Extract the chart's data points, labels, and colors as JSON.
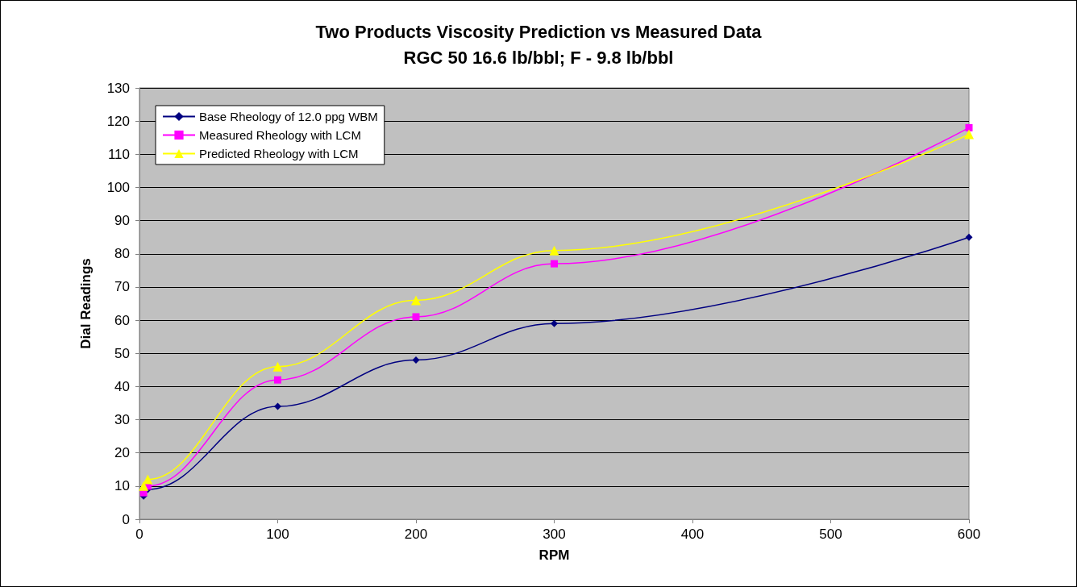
{
  "chart_data": {
    "type": "line",
    "title": "Two Products Viscosity Prediction vs Measured Data",
    "subtitle": "RGC 50 16.6 lb/bbl; F - 9.8 lb/bbl",
    "xlabel": "RPM",
    "ylabel": "Dial Readings",
    "x": [
      3,
      6,
      100,
      200,
      300,
      600
    ],
    "series": [
      {
        "name": "Base Rheology of 12.0 ppg WBM",
        "color": "#000080",
        "marker": "diamond",
        "values": [
          7,
          9,
          34,
          48,
          59,
          85
        ]
      },
      {
        "name": "Measured Rheology with LCM",
        "color": "#ff00ff",
        "marker": "square",
        "values": [
          8,
          10,
          42,
          61,
          77,
          118
        ]
      },
      {
        "name": "Predicted Rheology with LCM",
        "color": "#ffff00",
        "marker": "triangle",
        "values": [
          10,
          12,
          46,
          66,
          81,
          116
        ]
      }
    ],
    "xlim": [
      0,
      600
    ],
    "xticks": [
      0,
      100,
      200,
      300,
      400,
      500,
      600
    ],
    "ylim": [
      0,
      130
    ],
    "yticks": [
      0,
      10,
      20,
      30,
      40,
      50,
      60,
      70,
      80,
      90,
      100,
      110,
      120,
      130
    ],
    "grid": "y",
    "legend": "top left"
  }
}
